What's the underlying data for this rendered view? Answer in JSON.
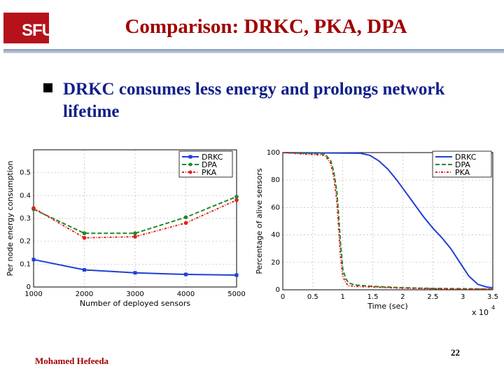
{
  "slide": {
    "logo_text": "SFU",
    "title": "Comparison: DRKC, PKA, DPA",
    "bullet": "DRKC consumes less energy and prolongs network lifetime",
    "author": "Mohamed Hefeeda",
    "page_number": "22"
  },
  "colors": {
    "title": "#a00000",
    "bullet_text": "#0f1f8a",
    "logo_bg": "#b5121b",
    "drkc": "#1f3fd6",
    "dpa": "#1f8a2a",
    "pka": "#e02020"
  },
  "chart_data": [
    {
      "type": "line",
      "xlabel": "Number of deployed sensors",
      "ylabel": "Per node energy consumption",
      "x": [
        1000,
        2000,
        3000,
        4000,
        5000
      ],
      "xlim": [
        1000,
        5000
      ],
      "ylim": [
        0,
        0.6
      ],
      "xticks": [
        "1000",
        "2000",
        "3000",
        "4000",
        "5000"
      ],
      "yticks": [
        "0",
        "0.1",
        "0.2",
        "0.3",
        "0.4",
        "0.5"
      ],
      "legend": "top-right",
      "grid": true,
      "series": [
        {
          "name": "DRKC",
          "values": [
            0.12,
            0.075,
            0.062,
            0.055,
            0.052
          ]
        },
        {
          "name": "DPA",
          "values": [
            0.34,
            0.235,
            0.235,
            0.305,
            0.395
          ]
        },
        {
          "name": "PKA",
          "values": [
            0.345,
            0.215,
            0.22,
            0.28,
            0.38
          ]
        }
      ]
    },
    {
      "type": "line",
      "xlabel": "Time (sec)",
      "ylabel": "Percentage of alive sensors",
      "x_multiplier": "x 10",
      "x_multiplier_exp": "4",
      "xlim": [
        0,
        3.5
      ],
      "ylim": [
        0,
        100
      ],
      "xticks": [
        "0",
        "0.5",
        "1",
        "1.5",
        "2",
        "2.5",
        "3",
        "3.5"
      ],
      "yticks": [
        "0",
        "20",
        "40",
        "60",
        "80",
        "100"
      ],
      "legend": "top-right",
      "grid": true,
      "series": [
        {
          "name": "DRKC",
          "x": [
            0,
            1.3,
            1.45,
            1.6,
            1.75,
            1.9,
            2.05,
            2.2,
            2.35,
            2.5,
            2.65,
            2.8,
            2.95,
            3.1,
            3.25,
            3.4,
            3.5
          ],
          "values": [
            100,
            99.5,
            98,
            94,
            88,
            80,
            71,
            62,
            53,
            45,
            38,
            30,
            20,
            10,
            4,
            2,
            1.5
          ]
        },
        {
          "name": "DPA",
          "x": [
            0,
            0.7,
            0.8,
            0.85,
            0.9,
            0.93,
            0.96,
            1.0,
            1.05,
            1.1,
            1.2,
            1.5,
            2.0,
            2.5,
            3.0,
            3.5
          ],
          "values": [
            100,
            99,
            94,
            86,
            72,
            55,
            35,
            15,
            8,
            5,
            3.5,
            2.5,
            1.5,
            1,
            0.8,
            0.5
          ]
        },
        {
          "name": "PKA",
          "x": [
            0,
            0.7,
            0.8,
            0.85,
            0.9,
            0.93,
            0.96,
            1.0,
            1.05,
            1.1,
            1.2,
            1.5,
            2.0,
            2.5,
            3.0,
            3.5
          ],
          "values": [
            100,
            98,
            92,
            82,
            65,
            45,
            25,
            10,
            5,
            3,
            2.5,
            2,
            1.2,
            0.8,
            0.6,
            0.4
          ]
        }
      ]
    }
  ]
}
